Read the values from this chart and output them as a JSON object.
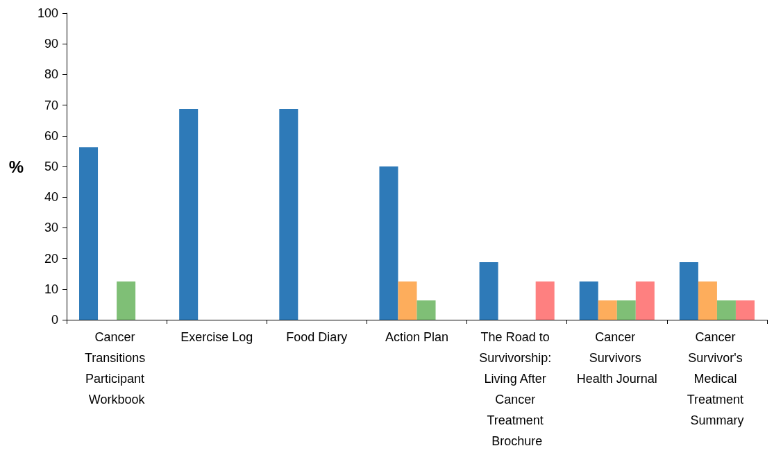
{
  "chart_data": {
    "type": "bar",
    "ylabel": "%",
    "categories": [
      "Cancer Transitions Participant Workbook",
      "Exercise Log",
      "Food Diary",
      "Action Plan",
      "The Road to Survivorship: Living After Cancer Treatment Brochure",
      "Cancer Survivors Health Journal",
      "Cancer Survivor's Medical Treatment Summary"
    ],
    "series": [
      {
        "color": "#2e7ab8",
        "values": [
          56.3,
          68.8,
          68.8,
          50,
          18.8,
          12.5,
          18.8
        ]
      },
      {
        "color": "#fdad5c",
        "values": [
          0,
          0,
          0,
          12.5,
          0,
          6.3,
          12.5
        ]
      },
      {
        "color": "#7fbf76",
        "values": [
          12.5,
          0,
          0,
          6.3,
          0,
          6.3,
          6.3
        ]
      },
      {
        "color": "#fe8080",
        "values": [
          0,
          0,
          0,
          0,
          12.5,
          12.5,
          6.3
        ]
      }
    ],
    "ylim": [
      0,
      100
    ],
    "yticks": [
      0,
      10,
      20,
      30,
      40,
      50,
      60,
      70,
      80,
      90,
      100
    ],
    "grid": false
  }
}
